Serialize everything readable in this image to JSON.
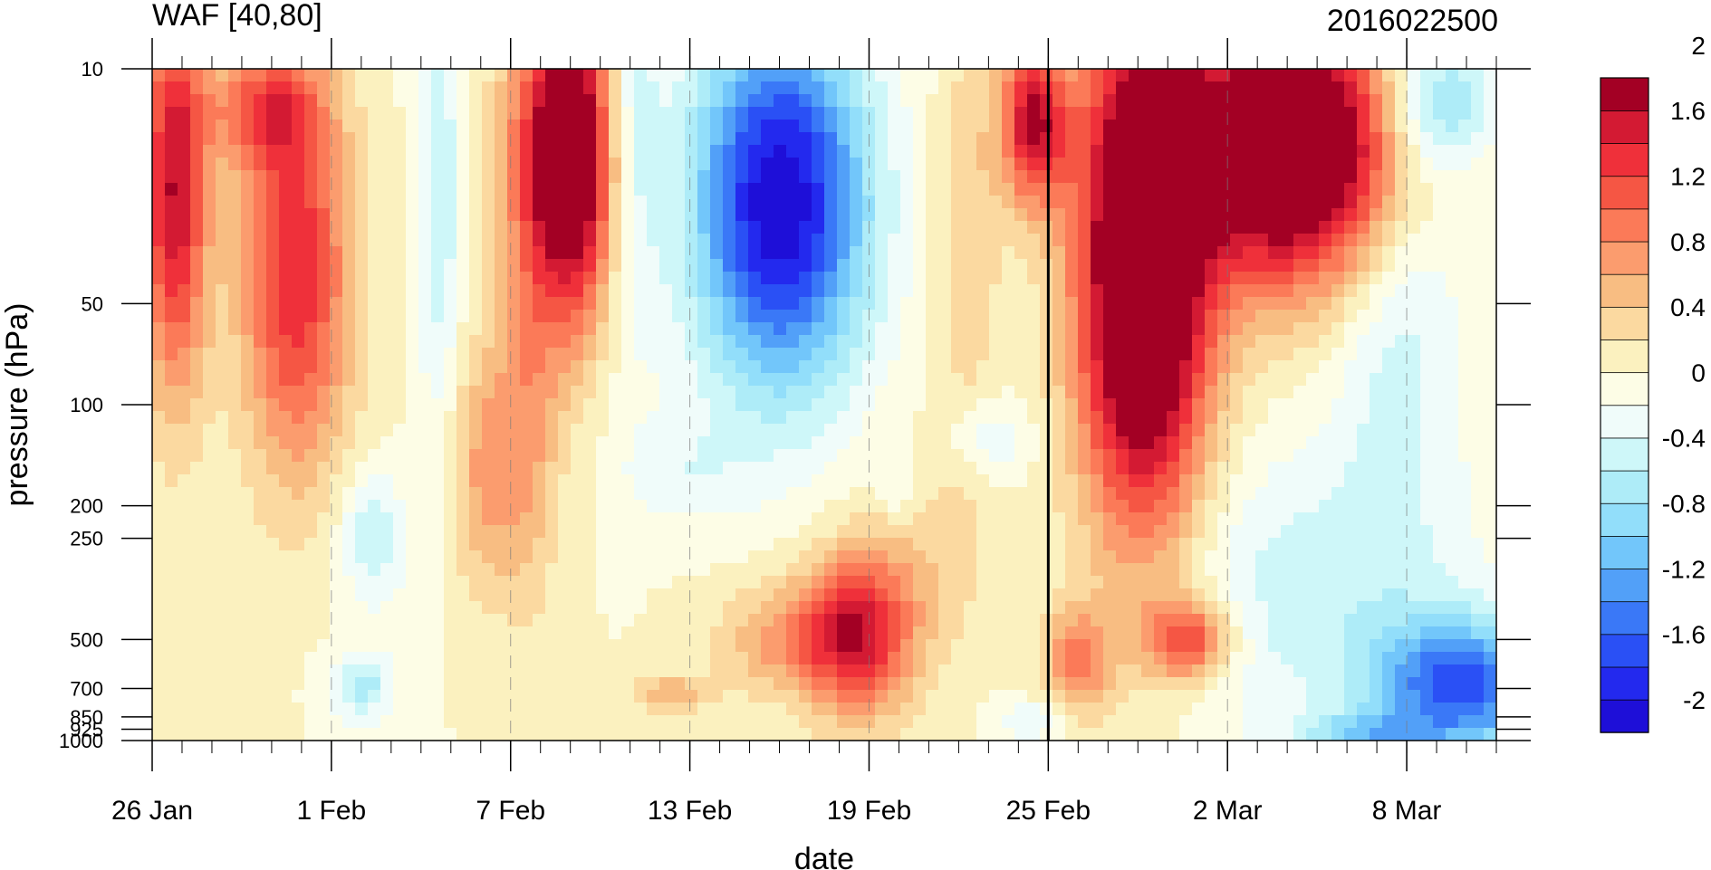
{
  "chart_data": {
    "type": "heatmap",
    "title": "WAF [40,80]",
    "subtitle_right": "2016022500",
    "xlabel": "date",
    "ylabel": "pressure (hPa)",
    "x_ticks": [
      "26 Jan",
      "1 Feb",
      "7 Feb",
      "13 Feb",
      "19 Feb",
      "25 Feb",
      "2 Mar",
      "8 Mar"
    ],
    "x_tick_dates": [
      "2016-01-26",
      "2016-02-01",
      "2016-02-07",
      "2016-02-13",
      "2016-02-19",
      "2016-02-25",
      "2016-03-02",
      "2016-03-08"
    ],
    "x_range": [
      "2016-01-26",
      "2016-03-11"
    ],
    "y_ticks": [
      "10",
      "50",
      "100",
      "200",
      "250",
      "500",
      "700",
      "850",
      "925",
      "1000"
    ],
    "y_tick_values": [
      10,
      50,
      100,
      200,
      250,
      500,
      700,
      850,
      925,
      1000
    ],
    "y_range": [
      1000,
      10
    ],
    "y_scale": "log",
    "marked_date": "2016-02-25",
    "colorbar_labels": [
      "2",
      "1.6",
      "1.2",
      "0.8",
      "0.4",
      "0",
      "-0.4",
      "-0.8",
      "-1.2",
      "-1.6",
      "-2"
    ],
    "contour_levels": [
      -2.2,
      -2.0,
      -1.8,
      -1.6,
      -1.4,
      -1.2,
      -1.0,
      -0.8,
      -0.6,
      -0.4,
      -0.2,
      0,
      0.2,
      0.4,
      0.6,
      0.8,
      1.0,
      1.2,
      1.4,
      1.6,
      1.8,
      2.0,
      2.2
    ],
    "colors": [
      "#1e0fd8",
      "#2329ee",
      "#2a50f5",
      "#3a78f7",
      "#52a0f8",
      "#72c6fa",
      "#92defa",
      "#aeecf8",
      "#cef7f9",
      "#f0fcfa",
      "#fdfde6",
      "#fbf1bf",
      "#fbd9a0",
      "#f8bd82",
      "#fb9c6e",
      "#fb7a58",
      "#f55644",
      "#ef303a",
      "#d31a33",
      "#a30024"
    ],
    "grid": "dashed vertical lines at date ticks",
    "legend": "colorbar right"
  }
}
